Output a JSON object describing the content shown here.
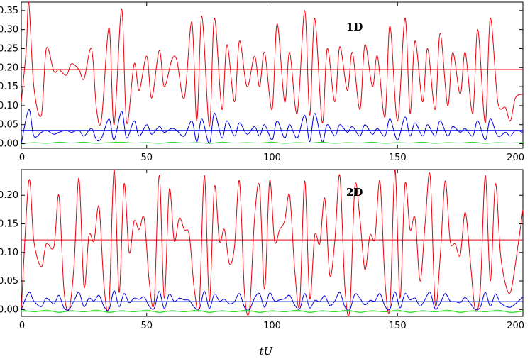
{
  "chart_data": [
    {
      "type": "line",
      "panel_label": "1D",
      "xlim": [
        0,
        200
      ],
      "ylim": [
        -0.012,
        0.372
      ],
      "x_ticks": [
        0,
        50,
        100,
        150,
        200
      ],
      "y_ticks": [
        0.0,
        0.05,
        0.1,
        0.15,
        0.2,
        0.25,
        0.3,
        0.35
      ],
      "y_tick_labels": [
        "0.00",
        "0.05",
        "0.10",
        "0.15",
        "0.20",
        "0.25",
        "0.30",
        "0.35"
      ],
      "x_tick_labels": [
        "0",
        "50",
        "100",
        "150",
        "200"
      ],
      "grid": false,
      "series": [
        {
          "color": "#e8000b",
          "style": "oscillating",
          "x": [
            0,
            2,
            3,
            5,
            8,
            10,
            13,
            15,
            18,
            20,
            23,
            25,
            28,
            30,
            32,
            35,
            37,
            40,
            42,
            45,
            47,
            50,
            52,
            55,
            57,
            60,
            62,
            65,
            68,
            70,
            72,
            75,
            77,
            80,
            82,
            85,
            87,
            90,
            93,
            95,
            97,
            100,
            102,
            105,
            107,
            110,
            113,
            115,
            117,
            120,
            122,
            125,
            127,
            130,
            132,
            135,
            137,
            140,
            142,
            145,
            147,
            150,
            153,
            155,
            157,
            160,
            162,
            165,
            167,
            170,
            172,
            175,
            177,
            180,
            182,
            185,
            187,
            190,
            193,
            195,
            197,
            200
          ],
          "values": [
            0.11,
            0.25,
            0.37,
            0.15,
            0.075,
            0.25,
            0.19,
            0.195,
            0.18,
            0.21,
            0.195,
            0.17,
            0.25,
            0.09,
            0.065,
            0.305,
            0.05,
            0.355,
            0.055,
            0.21,
            0.14,
            0.23,
            0.12,
            0.245,
            0.15,
            0.22,
            0.22,
            0.12,
            0.32,
            0.06,
            0.335,
            0.045,
            0.33,
            0.09,
            0.26,
            0.11,
            0.27,
            0.15,
            0.23,
            0.15,
            0.24,
            0.09,
            0.315,
            0.11,
            0.24,
            0.08,
            0.35,
            0.075,
            0.33,
            0.055,
            0.25,
            0.11,
            0.255,
            0.14,
            0.24,
            0.09,
            0.26,
            0.15,
            0.23,
            0.07,
            0.31,
            0.06,
            0.33,
            0.08,
            0.27,
            0.11,
            0.25,
            0.09,
            0.29,
            0.1,
            0.24,
            0.13,
            0.24,
            0.08,
            0.3,
            0.055,
            0.33,
            0.11,
            0.095,
            0.06,
            0.12,
            0.13
          ]
        },
        {
          "color": "#e8000b",
          "style": "constant",
          "x": [
            0,
            200
          ],
          "values": [
            0.195,
            0.195
          ]
        },
        {
          "color": "#0000e0",
          "style": "oscillating",
          "x": [
            0,
            3,
            5,
            8,
            10,
            13,
            15,
            18,
            20,
            23,
            25,
            28,
            30,
            32,
            35,
            37,
            40,
            42,
            45,
            47,
            50,
            52,
            55,
            57,
            60,
            62,
            65,
            68,
            70,
            72,
            75,
            77,
            80,
            82,
            85,
            87,
            90,
            93,
            95,
            97,
            100,
            102,
            105,
            107,
            110,
            113,
            115,
            117,
            120,
            122,
            125,
            127,
            130,
            132,
            135,
            137,
            140,
            142,
            145,
            147,
            150,
            153,
            155,
            157,
            160,
            162,
            165,
            167,
            170,
            172,
            175,
            177,
            180,
            182,
            185,
            187,
            190,
            193,
            195,
            197,
            200
          ],
          "values": [
            0.0,
            0.09,
            0.02,
            0.03,
            0.035,
            0.025,
            0.03,
            0.035,
            0.03,
            0.035,
            0.02,
            0.04,
            0.01,
            0.015,
            0.065,
            0.01,
            0.085,
            0.015,
            0.06,
            0.02,
            0.05,
            0.025,
            0.045,
            0.03,
            0.04,
            0.035,
            0.02,
            0.06,
            0.005,
            0.065,
            0.0,
            0.08,
            0.015,
            0.06,
            0.02,
            0.055,
            0.025,
            0.045,
            0.02,
            0.05,
            0.01,
            0.06,
            0.015,
            0.05,
            0.015,
            0.075,
            0.005,
            0.08,
            0.005,
            0.05,
            0.02,
            0.05,
            0.03,
            0.045,
            0.02,
            0.05,
            0.025,
            0.04,
            0.02,
            0.065,
            0.01,
            0.07,
            0.02,
            0.055,
            0.02,
            0.05,
            0.02,
            0.06,
            0.02,
            0.045,
            0.03,
            0.04,
            0.02,
            0.06,
            0.01,
            0.065,
            0.02,
            0.03,
            0.02,
            0.035,
            0.03
          ]
        },
        {
          "color": "#0000e0",
          "style": "constant",
          "x": [
            0,
            200
          ],
          "values": [
            0.035,
            0.035
          ]
        },
        {
          "color": "#22dd22",
          "style": "oscillating",
          "x": [
            0,
            5,
            10,
            15,
            20,
            25,
            30,
            35,
            40,
            45,
            50,
            55,
            60,
            65,
            70,
            75,
            80,
            85,
            90,
            95,
            100,
            105,
            110,
            115,
            120,
            125,
            130,
            135,
            140,
            145,
            150,
            155,
            160,
            165,
            170,
            175,
            180,
            185,
            190,
            195,
            200
          ],
          "values": [
            0.0,
            0.003,
            0.001,
            0.004,
            0.002,
            0.004,
            0.001,
            0.003,
            0.004,
            0.002,
            0.003,
            0.001,
            0.004,
            0.002,
            0.003,
            0.001,
            0.004,
            0.002,
            0.003,
            0.002,
            0.004,
            0.001,
            0.003,
            0.002,
            0.004,
            0.001,
            0.003,
            0.002,
            0.004,
            0.001,
            0.003,
            0.002,
            0.004,
            0.001,
            0.003,
            0.002,
            0.004,
            0.001,
            0.003,
            0.002,
            0.003
          ]
        },
        {
          "color": "#22dd22",
          "style": "constant",
          "x": [
            0,
            200
          ],
          "values": [
            0.002,
            0.002
          ]
        }
      ]
    },
    {
      "type": "line",
      "panel_label": "2D",
      "xlim": [
        0,
        200
      ],
      "ylim": [
        -0.012,
        0.245
      ],
      "x_ticks": [
        0,
        50,
        100,
        150,
        200
      ],
      "y_ticks": [
        0.0,
        0.05,
        0.1,
        0.15,
        0.2
      ],
      "y_tick_labels": [
        "0.00",
        "0.05",
        "0.10",
        "0.15",
        "0.20"
      ],
      "x_tick_labels": [
        "0",
        "50",
        "100",
        "150",
        "200"
      ],
      "x_axis_title": "tU",
      "grid": false,
      "series": [
        {
          "color": "#e8000b",
          "style": "oscillating",
          "x": [
            0,
            3,
            5,
            8,
            10,
            13,
            15,
            17,
            19,
            21,
            23,
            25,
            27,
            29,
            31,
            33,
            35,
            37,
            39,
            41,
            43,
            45,
            47,
            49,
            51,
            53,
            55,
            57,
            59,
            61,
            63,
            65,
            67,
            69,
            71,
            73,
            75,
            77,
            79,
            81,
            83,
            85,
            87,
            89,
            91,
            93,
            95,
            97,
            99,
            101,
            103,
            105,
            107,
            109,
            111,
            113,
            115,
            117,
            119,
            121,
            123,
            125,
            127,
            129,
            131,
            133,
            135,
            137,
            139,
            141,
            143,
            145,
            147,
            149,
            151,
            153,
            155,
            157,
            159,
            161,
            163,
            165,
            167,
            169,
            171,
            173,
            175,
            177,
            179,
            181,
            183,
            185,
            187,
            189,
            191,
            193,
            195,
            197,
            200
          ],
          "values": [
            0.0,
            0.225,
            0.12,
            0.075,
            0.115,
            0.11,
            0.2,
            0.035,
            0.0,
            0.075,
            0.23,
            0.04,
            0.13,
            0.12,
            0.18,
            0.04,
            0.01,
            0.245,
            0.03,
            0.22,
            0.1,
            0.155,
            0.14,
            0.16,
            0.05,
            0.015,
            0.235,
            0.02,
            0.21,
            0.12,
            0.16,
            0.14,
            0.13,
            0.035,
            0.01,
            0.235,
            0.015,
            0.215,
            0.12,
            0.14,
            0.08,
            0.11,
            0.225,
            0.03,
            0.0,
            0.16,
            0.215,
            0.035,
            0.225,
            0.12,
            0.14,
            0.155,
            0.2,
            0.07,
            0.01,
            0.225,
            0.02,
            0.13,
            0.115,
            0.195,
            0.06,
            0.12,
            0.235,
            0.04,
            0.0,
            0.215,
            0.16,
            0.07,
            0.13,
            0.125,
            0.225,
            0.05,
            0.005,
            0.245,
            0.02,
            0.22,
            0.14,
            0.16,
            0.05,
            0.15,
            0.235,
            0.01,
            0.09,
            0.225,
            0.12,
            0.115,
            0.095,
            0.17,
            0.085,
            0.0,
            0.035,
            0.235,
            0.05,
            0.22,
            0.1,
            0.045,
            0.03,
            0.08,
            0.175
          ]
        },
        {
          "color": "#e8000b",
          "style": "constant",
          "x": [
            0,
            200
          ],
          "values": [
            0.122,
            0.122
          ]
        },
        {
          "color": "#0000e0",
          "style": "oscillating",
          "x": [
            0,
            3,
            5,
            8,
            10,
            13,
            15,
            17,
            19,
            21,
            23,
            25,
            27,
            29,
            31,
            33,
            35,
            37,
            39,
            41,
            43,
            45,
            47,
            49,
            51,
            53,
            55,
            57,
            59,
            61,
            63,
            65,
            67,
            69,
            71,
            73,
            75,
            77,
            79,
            81,
            83,
            85,
            87,
            89,
            91,
            93,
            95,
            97,
            99,
            101,
            103,
            105,
            107,
            109,
            111,
            113,
            115,
            117,
            119,
            121,
            123,
            125,
            127,
            129,
            131,
            133,
            135,
            137,
            139,
            141,
            143,
            145,
            147,
            149,
            151,
            153,
            155,
            157,
            159,
            161,
            163,
            165,
            167,
            169,
            171,
            173,
            175,
            177,
            179,
            181,
            183,
            185,
            187,
            189,
            191,
            193,
            195,
            197,
            200
          ],
          "values": [
            0.0,
            0.03,
            0.015,
            0.005,
            0.02,
            0.01,
            0.025,
            0.003,
            0.0,
            0.015,
            0.03,
            0.005,
            0.02,
            0.015,
            0.025,
            0.005,
            0.0,
            0.033,
            0.005,
            0.028,
            0.012,
            0.02,
            0.018,
            0.022,
            0.006,
            0.002,
            0.032,
            0.002,
            0.027,
            0.014,
            0.02,
            0.017,
            0.016,
            0.004,
            0.001,
            0.032,
            0.002,
            0.027,
            0.015,
            0.018,
            0.01,
            0.014,
            0.028,
            0.004,
            0.0,
            0.02,
            0.028,
            0.004,
            0.029,
            0.015,
            0.017,
            0.019,
            0.025,
            0.008,
            0.001,
            0.028,
            0.003,
            0.016,
            0.014,
            0.024,
            0.007,
            0.015,
            0.03,
            0.005,
            0.0,
            0.027,
            0.02,
            0.008,
            0.016,
            0.015,
            0.028,
            0.006,
            0.001,
            0.031,
            0.003,
            0.028,
            0.017,
            0.02,
            0.006,
            0.018,
            0.03,
            0.001,
            0.011,
            0.028,
            0.015,
            0.014,
            0.012,
            0.021,
            0.011,
            0.0,
            0.004,
            0.03,
            0.006,
            0.027,
            0.012,
            0.006,
            0.004,
            0.01,
            0.022
          ]
        },
        {
          "color": "#0000e0",
          "style": "constant",
          "x": [
            0,
            200
          ],
          "values": [
            0.014,
            0.014
          ]
        },
        {
          "color": "#22dd22",
          "style": "oscillating",
          "x": [
            0,
            5,
            10,
            15,
            20,
            25,
            30,
            35,
            40,
            45,
            50,
            55,
            60,
            65,
            70,
            75,
            80,
            85,
            90,
            95,
            100,
            105,
            110,
            115,
            120,
            125,
            130,
            135,
            140,
            145,
            150,
            155,
            160,
            165,
            170,
            175,
            180,
            185,
            190,
            195,
            200
          ],
          "values": [
            0.0,
            -0.004,
            -0.001,
            -0.005,
            -0.002,
            -0.004,
            -0.001,
            -0.005,
            -0.002,
            -0.004,
            -0.001,
            -0.005,
            -0.002,
            -0.004,
            -0.001,
            -0.005,
            -0.002,
            -0.004,
            -0.001,
            -0.005,
            -0.002,
            -0.004,
            -0.001,
            -0.005,
            -0.002,
            -0.004,
            -0.001,
            -0.005,
            -0.002,
            -0.004,
            -0.001,
            -0.005,
            -0.002,
            -0.004,
            -0.001,
            -0.005,
            -0.002,
            -0.004,
            -0.001,
            -0.005,
            -0.003
          ]
        },
        {
          "color": "#22dd22",
          "style": "constant",
          "x": [
            0,
            200
          ],
          "values": [
            -0.003,
            -0.003
          ]
        }
      ]
    }
  ]
}
